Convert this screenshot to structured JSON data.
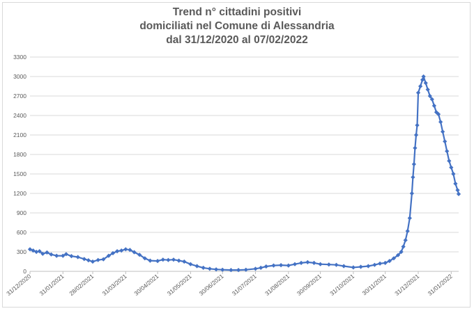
{
  "chart_data": {
    "type": "line",
    "title_lines": [
      "Trend n° cittadini positivi",
      "domiciliati nel Comune di Alessandria",
      "dal 31/12/2020 al 07/02/2022"
    ],
    "xlabel": "",
    "ylabel": "",
    "ylim": [
      0,
      3300
    ],
    "yticks": [
      0,
      300,
      600,
      900,
      1200,
      1500,
      1800,
      2100,
      2400,
      2700,
      3000,
      3300
    ],
    "xlim": [
      "2020-12-31",
      "2022-02-07"
    ],
    "xtick_labels": [
      "31/12/2020",
      "31/01/2021",
      "28/02/2021",
      "31/03/2021",
      "30/04/2021",
      "31/05/2021",
      "30/06/2021",
      "31/07/2021",
      "31/08/2021",
      "30/09/2021",
      "31/10/2021",
      "30/11/2021",
      "31/12/2021",
      "31/01/2022"
    ],
    "xtick_dates": [
      "2020-12-31",
      "2021-01-31",
      "2021-02-28",
      "2021-03-31",
      "2021-04-30",
      "2021-05-31",
      "2021-06-30",
      "2021-07-31",
      "2021-08-31",
      "2021-09-30",
      "2021-10-31",
      "2021-11-30",
      "2021-12-31",
      "2022-01-31"
    ],
    "grid": true,
    "color": "#4472c4",
    "series": [
      {
        "points": [
          [
            "2020-12-31",
            340
          ],
          [
            "2021-01-03",
            320
          ],
          [
            "2021-01-06",
            300
          ],
          [
            "2021-01-09",
            310
          ],
          [
            "2021-01-12",
            270
          ],
          [
            "2021-01-16",
            290
          ],
          [
            "2021-01-20",
            260
          ],
          [
            "2021-01-25",
            240
          ],
          [
            "2021-01-31",
            240
          ],
          [
            "2021-02-03",
            265
          ],
          [
            "2021-02-08",
            235
          ],
          [
            "2021-02-14",
            220
          ],
          [
            "2021-02-20",
            190
          ],
          [
            "2021-02-24",
            170
          ],
          [
            "2021-02-28",
            150
          ],
          [
            "2021-03-05",
            175
          ],
          [
            "2021-03-10",
            185
          ],
          [
            "2021-03-15",
            240
          ],
          [
            "2021-03-19",
            280
          ],
          [
            "2021-03-23",
            310
          ],
          [
            "2021-03-27",
            320
          ],
          [
            "2021-03-31",
            340
          ],
          [
            "2021-04-04",
            330
          ],
          [
            "2021-04-08",
            295
          ],
          [
            "2021-04-13",
            255
          ],
          [
            "2021-04-18",
            200
          ],
          [
            "2021-04-23",
            165
          ],
          [
            "2021-04-30",
            160
          ],
          [
            "2021-05-05",
            180
          ],
          [
            "2021-05-10",
            175
          ],
          [
            "2021-05-15",
            180
          ],
          [
            "2021-05-20",
            165
          ],
          [
            "2021-05-25",
            150
          ],
          [
            "2021-05-31",
            110
          ],
          [
            "2021-06-06",
            80
          ],
          [
            "2021-06-12",
            55
          ],
          [
            "2021-06-18",
            40
          ],
          [
            "2021-06-24",
            30
          ],
          [
            "2021-06-30",
            25
          ],
          [
            "2021-07-08",
            20
          ],
          [
            "2021-07-15",
            20
          ],
          [
            "2021-07-22",
            25
          ],
          [
            "2021-07-31",
            40
          ],
          [
            "2021-08-05",
            55
          ],
          [
            "2021-08-10",
            75
          ],
          [
            "2021-08-17",
            90
          ],
          [
            "2021-08-24",
            95
          ],
          [
            "2021-08-31",
            90
          ],
          [
            "2021-09-06",
            110
          ],
          [
            "2021-09-12",
            130
          ],
          [
            "2021-09-18",
            140
          ],
          [
            "2021-09-24",
            130
          ],
          [
            "2021-09-30",
            110
          ],
          [
            "2021-10-08",
            105
          ],
          [
            "2021-10-15",
            100
          ],
          [
            "2021-10-22",
            80
          ],
          [
            "2021-10-31",
            60
          ],
          [
            "2021-11-07",
            70
          ],
          [
            "2021-11-14",
            80
          ],
          [
            "2021-11-20",
            100
          ],
          [
            "2021-11-25",
            120
          ],
          [
            "2021-11-30",
            130
          ],
          [
            "2021-12-04",
            160
          ],
          [
            "2021-12-08",
            200
          ],
          [
            "2021-12-12",
            250
          ],
          [
            "2021-12-15",
            300
          ],
          [
            "2021-12-17",
            380
          ],
          [
            "2021-12-19",
            480
          ],
          [
            "2021-12-21",
            620
          ],
          [
            "2021-12-23",
            820
          ],
          [
            "2021-12-25",
            1200
          ],
          [
            "2021-12-26",
            1450
          ],
          [
            "2021-12-27",
            1650
          ],
          [
            "2021-12-28",
            1900
          ],
          [
            "2021-12-29",
            2100
          ],
          [
            "2021-12-30",
            2250
          ],
          [
            "2021-12-31",
            2750
          ],
          [
            "2022-01-02",
            2850
          ],
          [
            "2022-01-04",
            2950
          ],
          [
            "2022-01-05",
            3000
          ],
          [
            "2022-01-07",
            2900
          ],
          [
            "2022-01-09",
            2800
          ],
          [
            "2022-01-11",
            2700
          ],
          [
            "2022-01-13",
            2650
          ],
          [
            "2022-01-15",
            2550
          ],
          [
            "2022-01-17",
            2450
          ],
          [
            "2022-01-19",
            2420
          ],
          [
            "2022-01-21",
            2300
          ],
          [
            "2022-01-23",
            2150
          ],
          [
            "2022-01-25",
            2000
          ],
          [
            "2022-01-27",
            1850
          ],
          [
            "2022-01-29",
            1700
          ],
          [
            "2022-01-31",
            1600
          ],
          [
            "2022-02-02",
            1500
          ],
          [
            "2022-02-04",
            1350
          ],
          [
            "2022-02-06",
            1250
          ],
          [
            "2022-02-07",
            1190
          ]
        ]
      }
    ]
  }
}
